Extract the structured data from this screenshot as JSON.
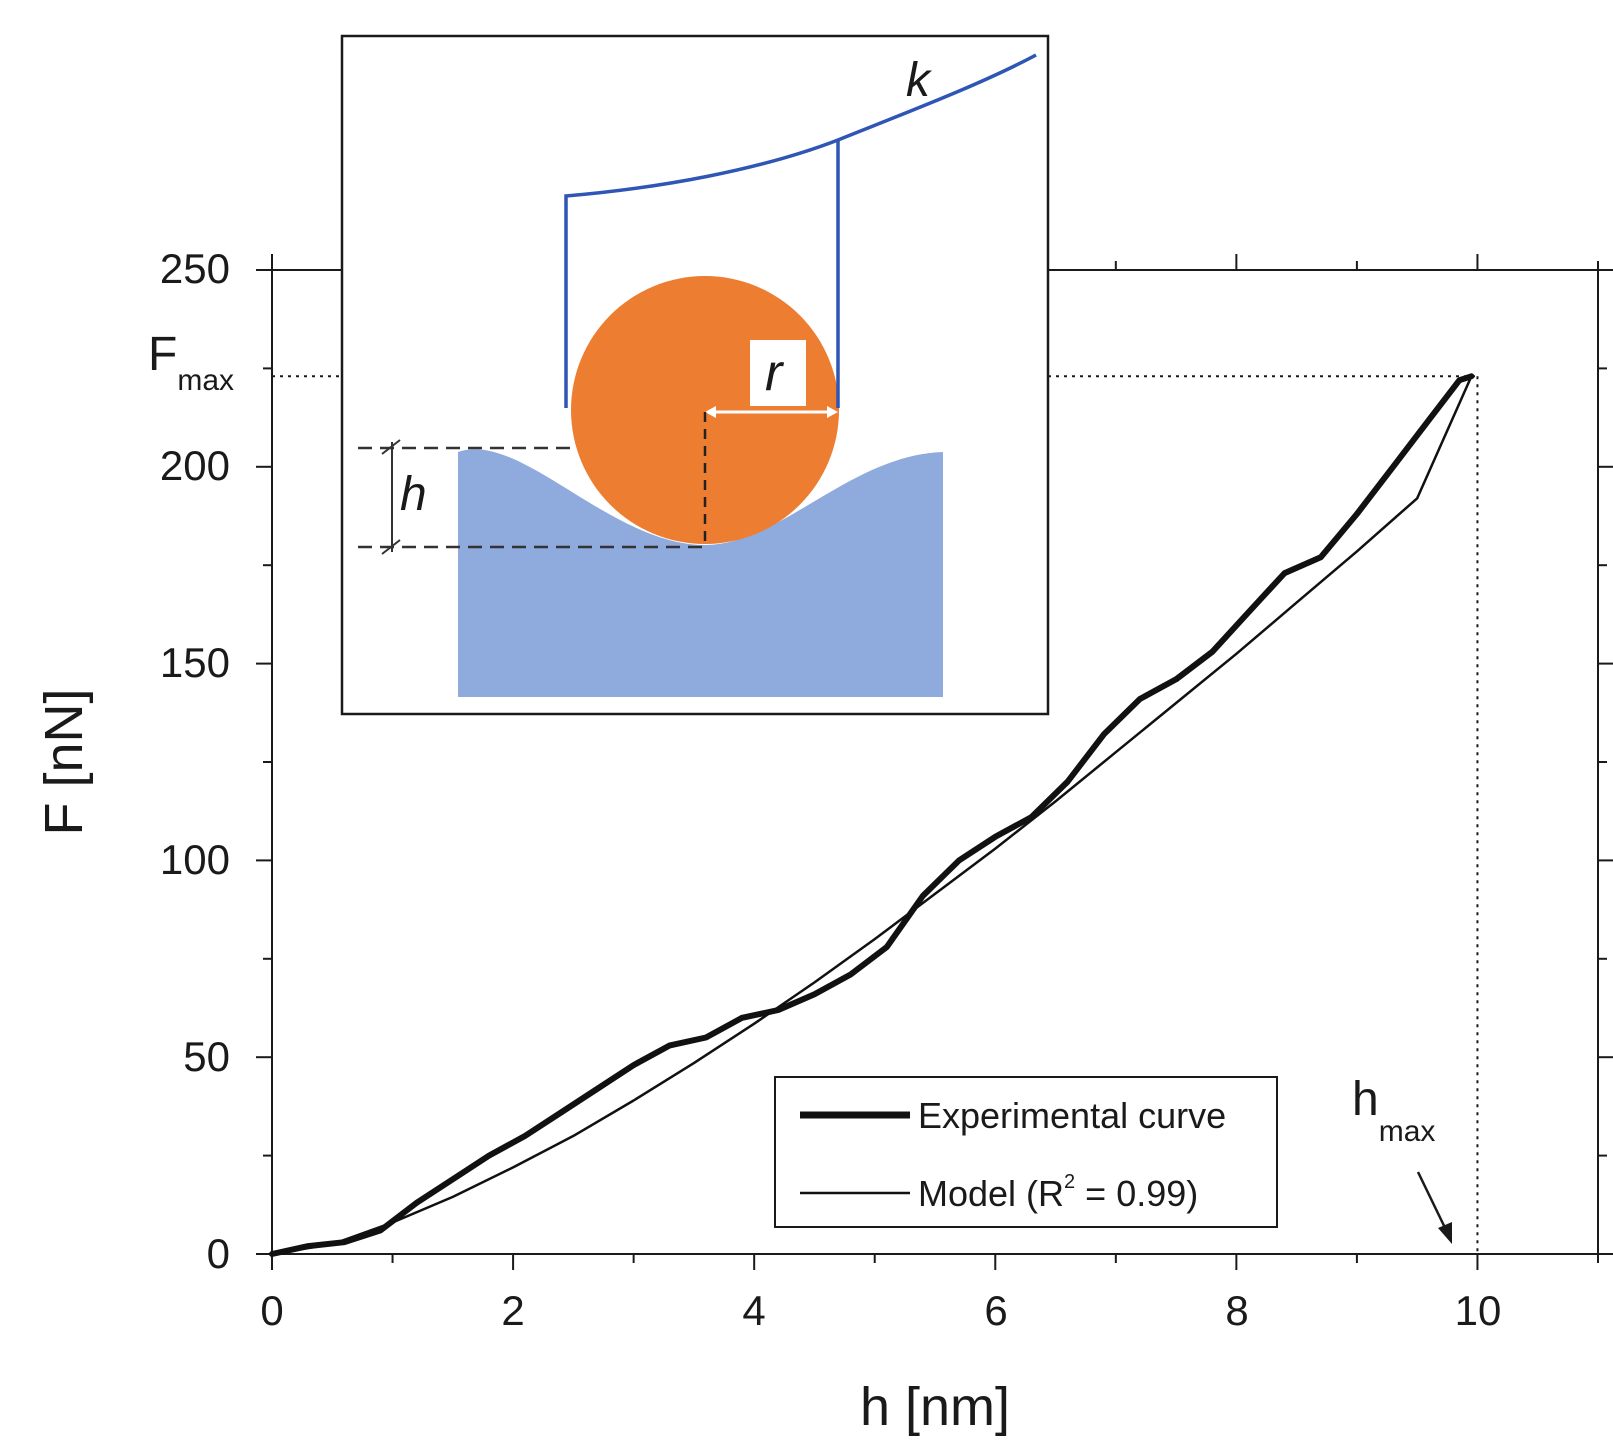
{
  "chart_data": {
    "type": "line",
    "title": "",
    "xlabel": "h [nm]",
    "ylabel": "F [nN]",
    "xlim": [
      0,
      11
    ],
    "ylim": [
      0,
      250
    ],
    "x_ticks": [
      0,
      2,
      4,
      6,
      8,
      10
    ],
    "y_ticks": [
      0,
      50,
      100,
      150,
      200,
      250
    ],
    "x_minor_step": 1,
    "y_minor_step": 25,
    "legend_position": "bottom-right",
    "series": [
      {
        "name": "Experimental curve",
        "style": "thick",
        "x": [
          0,
          0.3,
          0.6,
          0.9,
          1.2,
          1.5,
          1.8,
          2.1,
          2.4,
          2.7,
          3.0,
          3.3,
          3.6,
          3.9,
          4.2,
          4.5,
          4.8,
          5.1,
          5.4,
          5.7,
          6.0,
          6.3,
          6.6,
          6.9,
          7.2,
          7.5,
          7.8,
          8.1,
          8.4,
          8.7,
          9.0,
          9.3,
          9.6,
          9.85,
          9.95
        ],
        "y": [
          0,
          2,
          3,
          6,
          13,
          19,
          25,
          30,
          36,
          42,
          48,
          53,
          55,
          60,
          62,
          66,
          71,
          78,
          91,
          100,
          106,
          111,
          120,
          132,
          141,
          146,
          153,
          163,
          173,
          177,
          188,
          200,
          212,
          222,
          223
        ]
      },
      {
        "name": "Model (R² = 0.99)",
        "style": "thin",
        "x": [
          0,
          0.5,
          1.0,
          1.5,
          2.0,
          2.5,
          3.0,
          3.5,
          4.0,
          4.5,
          5.0,
          5.5,
          6.0,
          6.5,
          7.0,
          7.5,
          8.0,
          8.5,
          9.0,
          9.5,
          9.95
        ],
        "y": [
          0,
          2.5,
          8,
          14.5,
          22,
          30,
          39,
          48.5,
          58.5,
          69,
          80,
          91.5,
          103,
          115,
          127.5,
          140,
          152.5,
          165.5,
          178.5,
          192,
          223
        ]
      }
    ],
    "annotations": {
      "f_max": {
        "label": "F",
        "sub": "max",
        "value": 223
      },
      "h_max": {
        "label": "h",
        "sub": "max",
        "value": 10
      }
    }
  },
  "legend": {
    "experimental_label": "Experimental curve",
    "model_label_prefix": "Model (R",
    "model_label_sup": "2",
    "model_label_suffix": " = 0.99)"
  },
  "inset": {
    "spring_label": "k",
    "radius_label": "r",
    "depth_label": "h",
    "colors": {
      "sphere": "#ED7D31",
      "substrate": "#8FAADC",
      "cantilever": "#2F55B5"
    }
  }
}
